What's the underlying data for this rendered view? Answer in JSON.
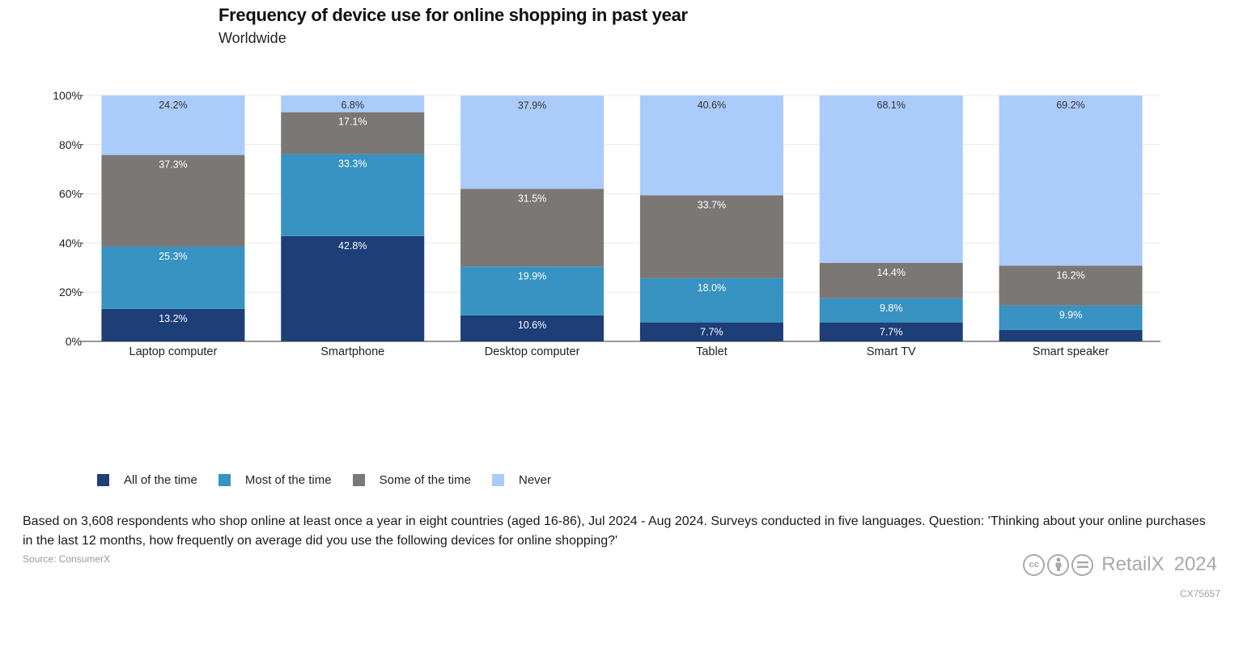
{
  "title": "Frequency of device use for online shopping in past year",
  "subtitle": "Worldwide",
  "colors": {
    "all": "#1d3e77",
    "most": "#3893c2",
    "some": "#7b7775",
    "never": "#abcbfb"
  },
  "chart_data": {
    "type": "bar",
    "stacked": true,
    "categories": [
      "Laptop computer",
      "Smartphone",
      "Desktop computer",
      "Tablet",
      "Smart TV",
      "Smart speaker"
    ],
    "series": [
      {
        "name": "All of the time",
        "values": [
          13.2,
          42.8,
          10.6,
          7.7,
          7.7,
          4.7
        ],
        "labels": [
          "13.2%",
          "42.8%",
          "10.6%",
          "7.7%",
          "7.7%",
          ""
        ]
      },
      {
        "name": "Most of the time",
        "values": [
          25.3,
          33.3,
          19.9,
          18.0,
          9.8,
          9.9
        ],
        "labels": [
          "25.3%",
          "33.3%",
          "19.9%",
          "18.0%",
          "9.8%",
          "9.9%"
        ]
      },
      {
        "name": "Some of the time",
        "values": [
          37.3,
          17.1,
          31.5,
          33.7,
          14.4,
          16.2
        ],
        "labels": [
          "37.3%",
          "17.1%",
          "31.5%",
          "33.7%",
          "14.4%",
          "16.2%"
        ]
      },
      {
        "name": "Never",
        "values": [
          24.2,
          6.8,
          37.9,
          40.6,
          68.1,
          69.2
        ],
        "labels": [
          "24.2%",
          "6.8%",
          "37.9%",
          "40.6%",
          "68.1%",
          "69.2%"
        ]
      }
    ],
    "yticks": [
      "0%",
      "20%",
      "40%",
      "60%",
      "80%",
      "100%"
    ],
    "ylim": [
      0,
      100
    ],
    "grid": true,
    "legend_position": "bottom-left"
  },
  "legend": [
    {
      "label": "All of the time",
      "color_key": "all"
    },
    {
      "label": "Most of the time",
      "color_key": "most"
    },
    {
      "label": "Some of the time",
      "color_key": "some"
    },
    {
      "label": "Never",
      "color_key": "never"
    }
  ],
  "footnote": "Based on 3,608 respondents who shop online at least once a year in eight countries (aged 16-86), Jul 2024 - Aug 2024. Surveys conducted in five languages. Question: 'Thinking about your online purchases in the last 12 months, how frequently on average did you use the following devices for online shopping?'",
  "source": "Source: ConsumerX",
  "brand": {
    "name": "RetailX",
    "year": "2024",
    "license_icons": [
      "cc-icon",
      "by-icon",
      "nd-icon"
    ],
    "cc_text": "cc"
  },
  "chart_code": "CX75657"
}
